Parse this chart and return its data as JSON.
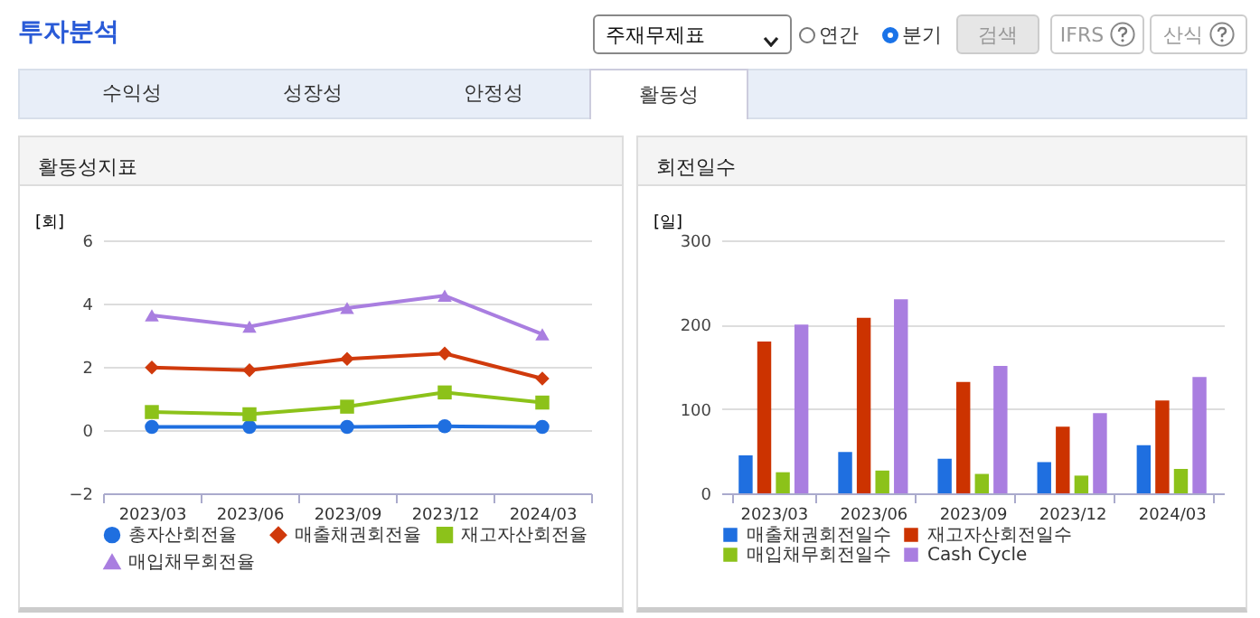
{
  "chart_data": [
    {
      "type": "other",
      "title": "투자분석",
      "annotations": [
        "주재무제표",
        "연간",
        "분기",
        "검색",
        "IFRS",
        "산식",
        "수익성",
        "성장성",
        "안정성",
        "활동성"
      ]
    },
    {
      "type": "line",
      "title": "활동성지표",
      "ylabel": "[회]",
      "categories": [
        "2023/03",
        "2023/06",
        "2023/09",
        "2023/12",
        "2024/03"
      ],
      "ylim": [
        -2,
        6
      ],
      "yticks": [
        -2,
        0,
        2,
        4,
        6
      ],
      "grid": "y",
      "legend": "bottom",
      "series": [
        {
          "name": "총자산회전율",
          "color": "#1f6fe0",
          "marker": "circle",
          "values": [
            0.1,
            0.1,
            0.1,
            0.12,
            0.1
          ]
        },
        {
          "name": "매출채권회전율",
          "color": "#d03a0c",
          "marker": "diamond",
          "values": [
            1.98,
            1.89,
            2.25,
            2.42,
            1.63
          ]
        },
        {
          "name": "재고자산회전율",
          "color": "#8cc21a",
          "marker": "square",
          "values": [
            0.57,
            0.5,
            0.74,
            1.19,
            0.87
          ]
        },
        {
          "name": "매입채무회전율",
          "color": "#a97ee0",
          "marker": "triangle",
          "values": [
            3.63,
            3.27,
            3.86,
            4.25,
            3.03
          ]
        }
      ]
    },
    {
      "type": "bar",
      "title": "회전일수",
      "ylabel": "[일]",
      "categories": [
        "2023/03",
        "2023/06",
        "2023/09",
        "2023/12",
        "2024/03"
      ],
      "ylim": [
        0,
        300
      ],
      "yticks": [
        0,
        100,
        200,
        300
      ],
      "grid": "y",
      "legend": "bottom",
      "series": [
        {
          "name": "매출채권회전일수",
          "color": "#1f6fe0",
          "values": [
            45,
            49,
            41,
            37,
            57
          ]
        },
        {
          "name": "재고자산회전일수",
          "color": "#cc3300",
          "values": [
            180,
            208,
            132,
            79,
            110
          ]
        },
        {
          "name": "매입채무회전일수",
          "color": "#8cc21a",
          "values": [
            25,
            27,
            23,
            21,
            29
          ]
        },
        {
          "name": "Cash Cycle",
          "color": "#a97ee0",
          "values": [
            200,
            230,
            151,
            95,
            138
          ]
        }
      ]
    }
  ]
}
